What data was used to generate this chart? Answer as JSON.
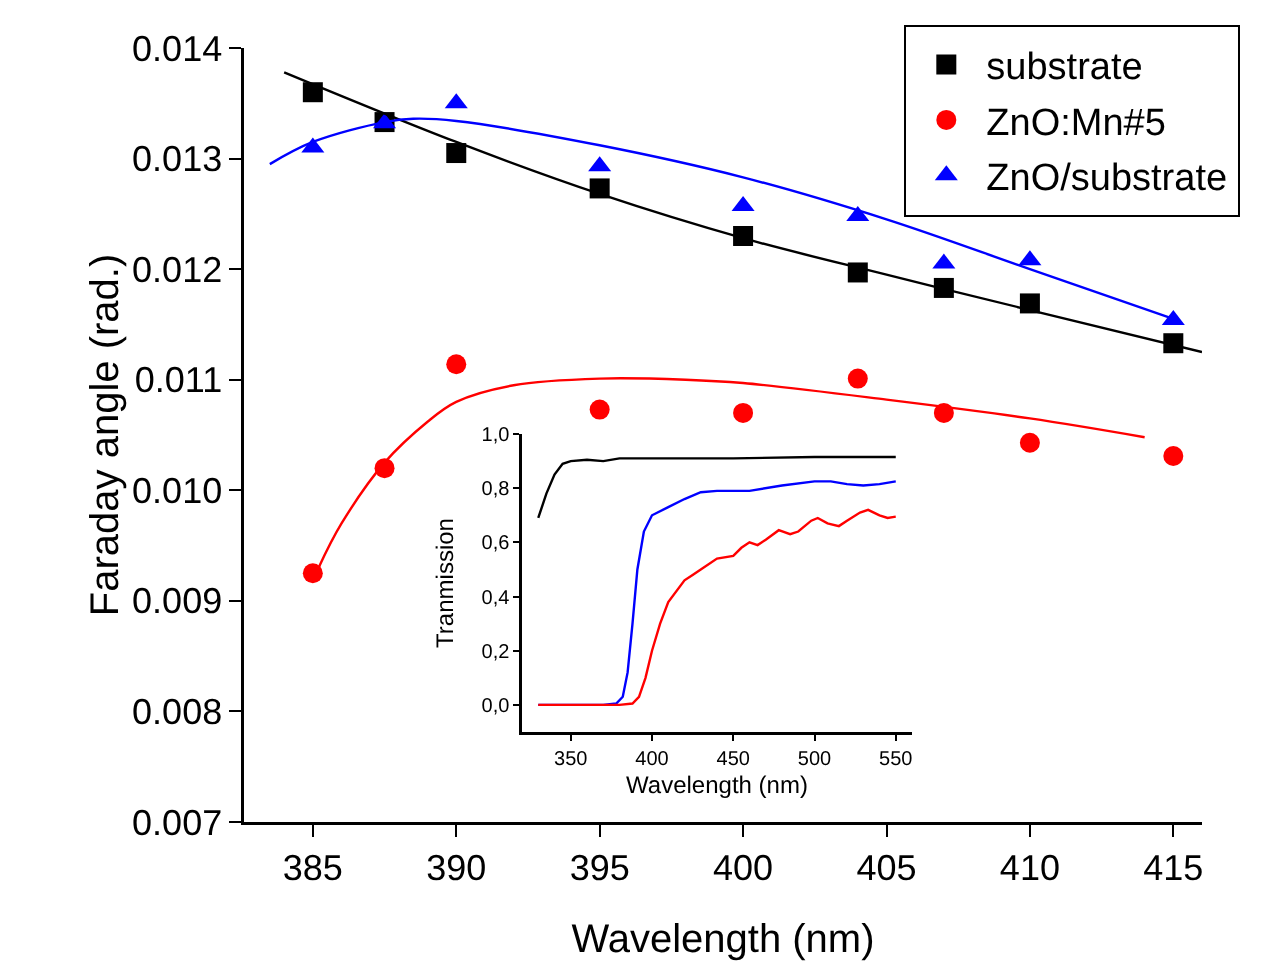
{
  "chart_data": [
    {
      "type": "scatter",
      "xlabel": "Wavelength (nm)",
      "ylabel": "Faraday angle (rad.)",
      "xlim": [
        382.6,
        416
      ],
      "ylim": [
        0.007,
        0.014
      ],
      "xticks": [
        385,
        390,
        395,
        400,
        405,
        410,
        415
      ],
      "yticks": [
        {
          "value": 0.007,
          "label": "0.007"
        },
        {
          "value": 0.008,
          "label": "0.008"
        },
        {
          "value": 0.009,
          "label": "0.009"
        },
        {
          "value": 0.01,
          "label": "0.010"
        },
        {
          "value": 0.011,
          "label": "0.011"
        },
        {
          "value": 0.012,
          "label": "0.012"
        },
        {
          "value": 0.013,
          "label": "0.013"
        },
        {
          "value": 0.014,
          "label": "0.014"
        }
      ],
      "grid": false,
      "legend": "top right",
      "x": [
        385,
        387.5,
        390,
        395,
        400,
        404,
        407,
        410,
        415
      ],
      "series": [
        {
          "name": "substrate",
          "color": "#000000",
          "marker": "square",
          "values": [
            0.0136,
            0.01333,
            0.01305,
            0.01273,
            0.0123,
            0.01197,
            0.01183,
            0.01169,
            0.01133
          ]
        },
        {
          "name": "ZnO:Mn#5",
          "color": "#ff0000",
          "marker": "circle",
          "values": [
            0.00925,
            0.0102,
            0.01114,
            0.01073,
            0.0107,
            0.01101,
            0.0107,
            0.01043,
            0.01031
          ]
        },
        {
          "name": "ZnO/substrate",
          "color": "#0000ff",
          "marker": "triangle",
          "values": [
            0.0131,
            0.01332,
            0.0135,
            0.01293,
            0.01257,
            0.01248,
            0.01205,
            0.01208,
            0.01154
          ]
        },
        {
          "type": "line",
          "color": "#000000",
          "marker": "none",
          "x": [
            384,
            390,
            395,
            400,
            405,
            410,
            416
          ],
          "values": [
            0.01378,
            0.01315,
            0.01268,
            0.01228,
            0.01195,
            0.01163,
            0.01125
          ]
        },
        {
          "type": "line",
          "color": "#ff0000",
          "marker": "none",
          "x": [
            385.2,
            386,
            387.5,
            389,
            390,
            392,
            395,
            398,
            400,
            405,
            410,
            414
          ],
          "values": [
            0.0093,
            0.0097,
            0.01025,
            0.01062,
            0.0108,
            0.01095,
            0.01101,
            0.011,
            0.01097,
            0.01082,
            0.01065,
            0.01048
          ]
        },
        {
          "type": "line",
          "color": "#0000ff",
          "marker": "none",
          "x": [
            383.5,
            385,
            387.5,
            388.5,
            390,
            395,
            400,
            405,
            410,
            415
          ],
          "values": [
            0.01295,
            0.01315,
            0.01333,
            0.01336,
            0.01334,
            0.01312,
            0.01283,
            0.01245,
            0.012,
            0.01155
          ]
        }
      ]
    },
    {
      "type": "line",
      "xlabel": "Wavelength (nm)",
      "ylabel": "Tranmission",
      "xlim": [
        320,
        560
      ],
      "ylim": [
        -0.1,
        1.0
      ],
      "xticks": [
        350,
        400,
        450,
        500,
        550
      ],
      "yticks": [
        {
          "value": 0,
          "label": "0,0"
        },
        {
          "value": 0.2,
          "label": "0,2"
        },
        {
          "value": 0.4,
          "label": "0,4"
        },
        {
          "value": 0.6,
          "label": "0,6"
        },
        {
          "value": 0.8,
          "label": "0,8"
        },
        {
          "value": 1.0,
          "label": "1,0"
        }
      ],
      "grid": false,
      "legend": false,
      "marker": "none",
      "series": [
        {
          "color": "#000000",
          "x": [
            330,
            335,
            340,
            345,
            350,
            360,
            370,
            380,
            400,
            450,
            500,
            550
          ],
          "values": [
            0.69,
            0.78,
            0.85,
            0.89,
            0.9,
            0.905,
            0.9,
            0.91,
            0.91,
            0.91,
            0.915,
            0.915
          ]
        },
        {
          "color": "#0000ff",
          "x": [
            330,
            370,
            378,
            382,
            385,
            388,
            391,
            395,
            400,
            410,
            420,
            430,
            440,
            460,
            480,
            500,
            510,
            520,
            530,
            540,
            550
          ],
          "values": [
            0,
            0,
            0.005,
            0.03,
            0.12,
            0.3,
            0.5,
            0.64,
            0.7,
            0.73,
            0.76,
            0.785,
            0.79,
            0.79,
            0.81,
            0.825,
            0.825,
            0.815,
            0.81,
            0.815,
            0.825
          ]
        },
        {
          "color": "#ff0000",
          "x": [
            330,
            380,
            388,
            392,
            396,
            400,
            405,
            410,
            420,
            425,
            430,
            440,
            450,
            455,
            460,
            465,
            470,
            478,
            485,
            490,
            498,
            502,
            508,
            515,
            520,
            528,
            533,
            540,
            545,
            550
          ],
          "values": [
            0,
            0,
            0.005,
            0.03,
            0.1,
            0.2,
            0.3,
            0.38,
            0.46,
            0.48,
            0.5,
            0.54,
            0.55,
            0.58,
            0.6,
            0.59,
            0.61,
            0.645,
            0.63,
            0.64,
            0.68,
            0.69,
            0.67,
            0.66,
            0.68,
            0.71,
            0.72,
            0.7,
            0.69,
            0.695
          ]
        }
      ]
    }
  ]
}
